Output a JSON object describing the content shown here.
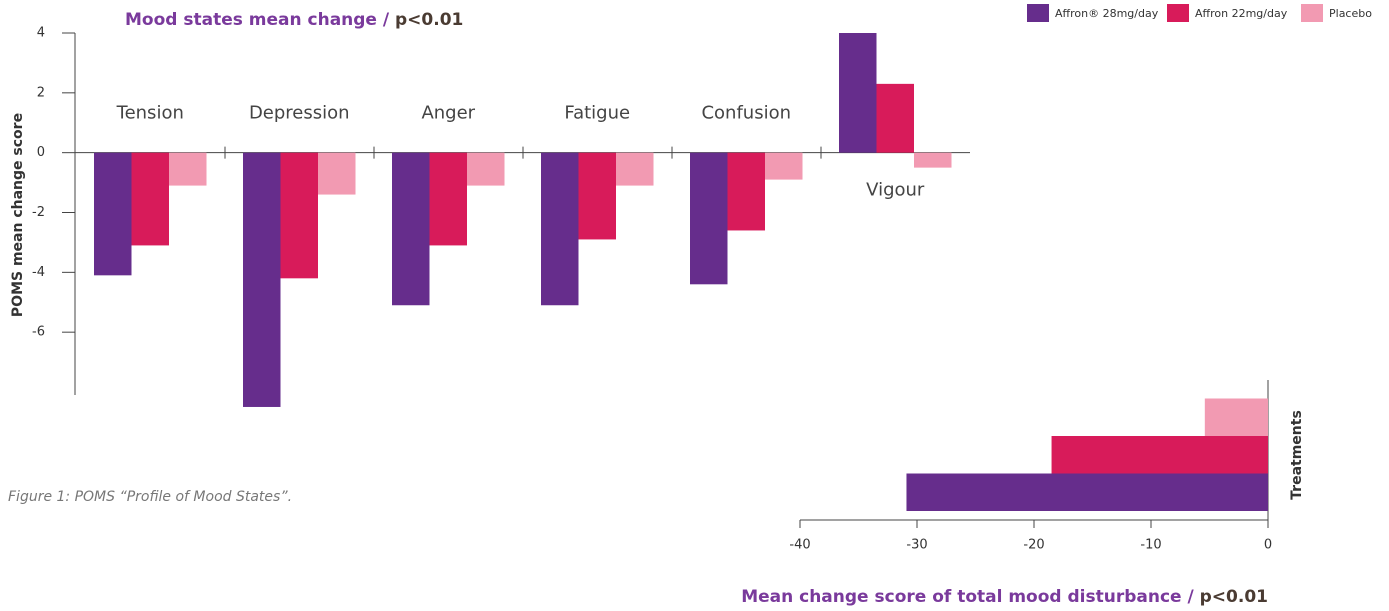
{
  "chart_data": [
    {
      "type": "bar",
      "title": "Mood states mean change /",
      "title_note": "p<0.01",
      "ylabel": "POMS mean change score",
      "categories": [
        "Tension",
        "Depression",
        "Anger",
        "Fatigue",
        "Confusion",
        "Vigour"
      ],
      "series": [
        {
          "name": "Affron® 28mg/day",
          "color": "#662d8c",
          "values": [
            -4.1,
            -8.5,
            -5.1,
            -5.1,
            -4.4,
            4.0
          ]
        },
        {
          "name": "Affron 22mg/day",
          "color": "#d81b5a",
          "values": [
            -3.1,
            -4.2,
            -3.1,
            -2.9,
            -2.6,
            2.3
          ]
        },
        {
          "name": "Placebo",
          "color": "#f29ab2",
          "values": [
            -1.1,
            -1.4,
            -1.1,
            -1.1,
            -0.9,
            -0.5
          ]
        }
      ],
      "ylim": [
        -8.1,
        4
      ],
      "yticks": [
        4,
        2,
        0,
        -2,
        -4,
        -6
      ],
      "legend": "top-right",
      "caption": "Figure 1: POMS “Profile of Mood States”."
    },
    {
      "type": "hbar",
      "title": "Mean change score of total mood disturbance /",
      "title_note": "p<0.01",
      "ylabel": "Treatments",
      "values": [
        -30.9,
        -18.5,
        -5.4
      ],
      "colors": [
        "#662d8c",
        "#d81b5a",
        "#f29ab2"
      ],
      "xlim": [
        -40,
        0
      ],
      "xticks": [
        -40,
        -30,
        -20,
        -10,
        0
      ]
    }
  ]
}
